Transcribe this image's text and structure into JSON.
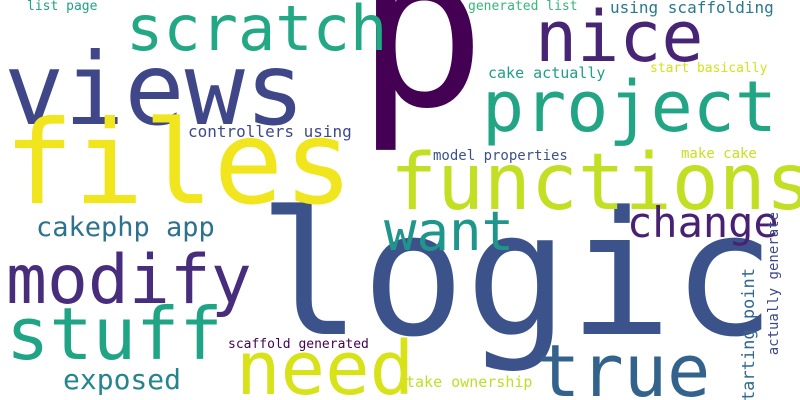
{
  "words": [
    {
      "text": "p",
      "color": "#440154"
    },
    {
      "text": "logic",
      "color": "#3b528b"
    },
    {
      "text": "views",
      "color": "#3f4788"
    },
    {
      "text": "files",
      "color": "#f1e51d"
    },
    {
      "text": "functions",
      "color": "#c2df23"
    },
    {
      "text": "project",
      "color": "#21a585"
    },
    {
      "text": "scratch",
      "color": "#22a884"
    },
    {
      "text": "nice",
      "color": "#482475"
    },
    {
      "text": "modify",
      "color": "#472d7b"
    },
    {
      "text": "stuff",
      "color": "#20a486"
    },
    {
      "text": "need",
      "color": "#d8e219"
    },
    {
      "text": "true",
      "color": "#33638d"
    },
    {
      "text": "want",
      "color": "#1f968b"
    },
    {
      "text": "change",
      "color": "#482173"
    },
    {
      "text": "cakephp app",
      "color": "#2c728e"
    },
    {
      "text": "exposed",
      "color": "#25858e"
    },
    {
      "text": "controllers using",
      "color": "#3e4a89"
    },
    {
      "text": "model properties",
      "color": "#3b528b"
    },
    {
      "text": "make cake",
      "color": "#c8e020"
    },
    {
      "text": "cake actually",
      "color": "#1f9e89"
    },
    {
      "text": "start basically",
      "color": "#d2e21b"
    },
    {
      "text": "using scaffolding",
      "color": "#2a788e"
    },
    {
      "text": "generated list",
      "color": "#35b779"
    },
    {
      "text": "list page",
      "color": "#1fa187"
    },
    {
      "text": "scaffold generated",
      "color": "#440154"
    },
    {
      "text": "take ownership",
      "color": "#bddf26"
    },
    {
      "text": "starting point",
      "color": "#31688e"
    },
    {
      "text": "actually generate",
      "color": "#3e4989"
    }
  ]
}
